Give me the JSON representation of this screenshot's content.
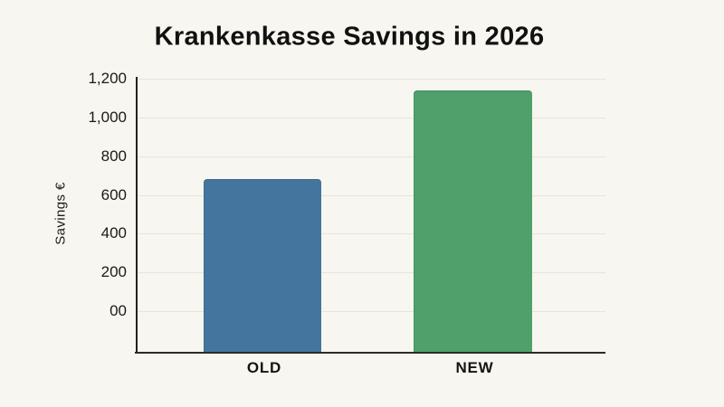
{
  "page": {
    "background_color": "#F8F6F0",
    "text_color": "#111111"
  },
  "chart_data": {
    "type": "bar",
    "title": "Krankenkasse Savings in 2026",
    "xlabel": "",
    "ylabel": "Savings €",
    "categories": [
      "OLD",
      "NEW"
    ],
    "values": [
      680,
      1140
    ],
    "bar_colors": [
      "#44759E",
      "#4FA06A"
    ],
    "y_ticks": [
      {
        "label": "00",
        "value": 0
      },
      {
        "label": "200",
        "value": 200
      },
      {
        "label": "400",
        "value": 400
      },
      {
        "label": "600",
        "value": 600
      },
      {
        "label": "800",
        "value": 800
      },
      {
        "label": "1,000",
        "value": 1000
      },
      {
        "label": "1,200",
        "value": 1200
      }
    ],
    "ylim": [
      0,
      1200
    ],
    "grid": "horizontal",
    "gridline_color": "#E6E4DD",
    "axis_color": "#22221f",
    "legend": "none"
  }
}
